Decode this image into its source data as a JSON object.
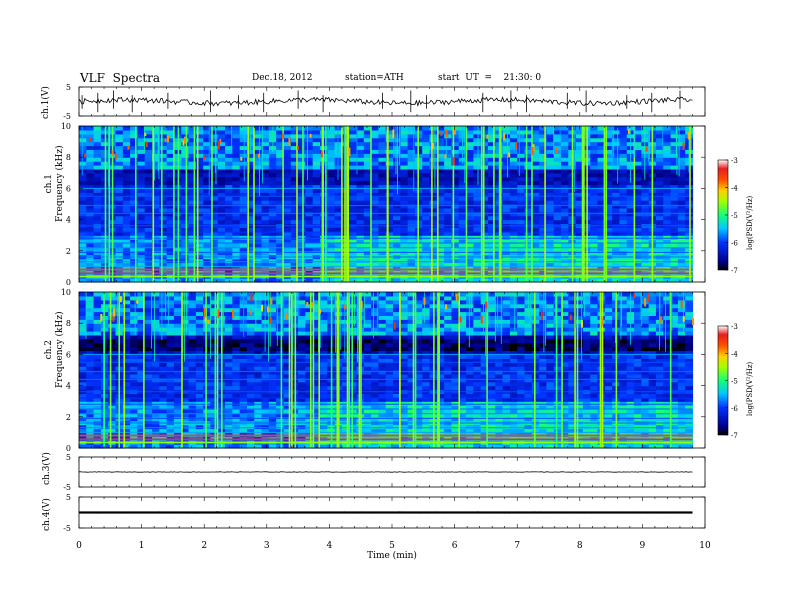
{
  "header": {
    "title": "VLF  Spectra",
    "date": "Dec.18, 2012",
    "station": "station=ATH",
    "start": "start  UT  =    21:30: 0"
  },
  "chart_data": [
    {
      "type": "line",
      "id": "ch1_waveform",
      "ylabel": "ch.1(V)",
      "ylim": [
        -5,
        5
      ],
      "yticks": [
        "5",
        "-5"
      ],
      "xlim": [
        0,
        10
      ],
      "x_end": 9.8,
      "level": 0,
      "noise": "strong",
      "spikes_min": [
        0.05,
        0.3,
        0.55,
        0.85,
        1.42,
        2.1,
        2.55,
        2.95,
        3.5,
        3.9,
        4.85,
        5.3,
        5.55,
        6.45,
        6.9,
        7.15,
        7.8,
        8.1,
        8.75,
        9.15,
        9.6
      ]
    },
    {
      "type": "heatmap",
      "id": "ch1_spectrogram",
      "ylabel": "ch.1\nFrequency (kHz)",
      "ylim": [
        0,
        10
      ],
      "yticks": [
        "0",
        "2",
        "4",
        "6",
        "8",
        "10"
      ],
      "xlim": [
        0,
        10
      ],
      "x_end": 9.8,
      "colorbar": {
        "label": "log(PSD(V²/Hz)",
        "ticks": [
          "-3",
          "-4",
          "-5",
          "-6",
          "-7"
        ],
        "range": [
          -7,
          -3
        ]
      }
    },
    {
      "type": "heatmap",
      "id": "ch2_spectrogram",
      "ylabel": "ch.2\nFrequency (kHz)",
      "ylim": [
        0,
        10
      ],
      "yticks": [
        "0",
        "2",
        "4",
        "6",
        "8",
        "10"
      ],
      "xlim": [
        0,
        10
      ],
      "x_end": 9.8,
      "colorbar": {
        "label": "log(PSD(V²/Hz)",
        "ticks": [
          "-3",
          "-4",
          "-5",
          "-6",
          "-7"
        ],
        "range": [
          -7,
          -3
        ]
      }
    },
    {
      "type": "line",
      "id": "ch3_waveform",
      "ylabel": "ch.3(V)",
      "ylim": [
        -5,
        5
      ],
      "yticks": [
        "5",
        "-5"
      ],
      "xlim": [
        0,
        10
      ],
      "x_end": 9.8,
      "level": 0,
      "noise": "weak"
    },
    {
      "type": "line",
      "id": "ch4_waveform",
      "ylabel": "ch.4(V)",
      "ylim": [
        -5,
        5
      ],
      "yticks": [
        "5",
        "-5"
      ],
      "xlim": [
        0,
        10
      ],
      "x_end": 9.8,
      "level": 0,
      "noise": "band"
    }
  ],
  "xaxis": {
    "label": "Time  (min)",
    "ticks": [
      "0",
      "1",
      "2",
      "3",
      "4",
      "5",
      "6",
      "7",
      "8",
      "9",
      "10"
    ]
  }
}
